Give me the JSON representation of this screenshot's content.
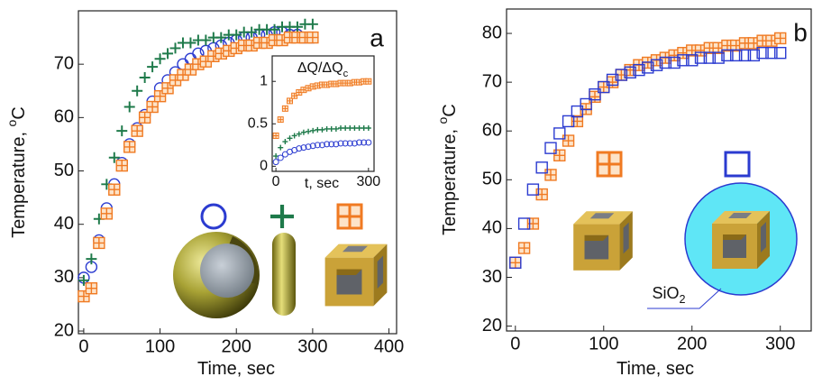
{
  "chart_data": [
    {
      "type": "scatter",
      "label": "a",
      "xlabel": [
        {
          "text": "Time, sec"
        }
      ],
      "ylabel": [
        {
          "text": "Temperature, "
        },
        {
          "text": "o",
          "shift": "super"
        },
        {
          "text": "C"
        }
      ],
      "x": [
        0,
        10,
        20,
        30,
        40,
        50,
        60,
        70,
        80,
        90,
        100,
        110,
        120,
        130,
        140,
        150,
        160,
        170,
        180,
        190,
        200,
        210,
        220,
        230,
        240,
        250,
        260,
        270,
        280,
        290,
        300
      ],
      "series": [
        {
          "marker": "circle",
          "color": "#2b3bd0",
          "values": [
            30,
            32,
            37,
            43,
            47.5,
            51.5,
            55,
            58,
            60.5,
            63,
            65.5,
            67,
            68.5,
            70,
            71,
            72,
            72.5,
            73,
            73.5,
            74,
            74.5,
            75,
            75,
            75.5,
            75.5,
            76,
            76,
            75.5,
            75.5,
            75,
            75
          ]
        },
        {
          "marker": "plus",
          "color": "#1e7a4a",
          "values": [
            29.5,
            33.5,
            41,
            47.5,
            52.5,
            57.5,
            62,
            65,
            67.5,
            69.5,
            71,
            72,
            73,
            74,
            74,
            74.5,
            74.5,
            75,
            75,
            75.5,
            75.5,
            76,
            76,
            76.5,
            76.5,
            76.5,
            77,
            77,
            77,
            77.5,
            77.5
          ]
        },
        {
          "marker": "boxplus",
          "color": "#f07a22",
          "values": [
            26.5,
            28,
            36.5,
            42,
            46.5,
            51,
            54.5,
            57.5,
            60,
            62,
            64,
            65.5,
            67,
            68,
            69,
            70,
            70.5,
            71.5,
            72,
            72.5,
            73,
            73.5,
            73.5,
            74,
            74,
            74.5,
            74.5,
            75,
            75,
            75,
            75
          ]
        }
      ],
      "xlim": [
        -7,
        410
      ],
      "ylim": [
        19.5,
        80
      ],
      "xticks": [
        0,
        100,
        200,
        300,
        400
      ],
      "yticks": [
        20,
        30,
        40,
        50,
        60,
        70
      ],
      "grid": false,
      "legend": true
    },
    {
      "type": "scatter",
      "xlabel": [
        {
          "text": "t, sec"
        }
      ],
      "ylabel": [
        {
          "text": "ΔQ/ΔQ"
        },
        {
          "text": "c",
          "shift": "sub"
        }
      ],
      "x": [
        0,
        15,
        30,
        45,
        60,
        75,
        90,
        105,
        120,
        135,
        150,
        165,
        180,
        195,
        210,
        225,
        240,
        255,
        270,
        285,
        300
      ],
      "series": [
        {
          "marker": "boxplus",
          "color": "#f07a22",
          "values": [
            0.36,
            0.55,
            0.68,
            0.77,
            0.83,
            0.87,
            0.9,
            0.92,
            0.94,
            0.95,
            0.96,
            0.96,
            0.97,
            0.97,
            0.98,
            0.98,
            0.98,
            0.99,
            0.99,
            1.0,
            1.0
          ]
        },
        {
          "marker": "plus",
          "color": "#1e7a4a",
          "values": [
            0.12,
            0.22,
            0.29,
            0.33,
            0.36,
            0.38,
            0.4,
            0.41,
            0.42,
            0.43,
            0.43,
            0.44,
            0.44,
            0.44,
            0.45,
            0.45,
            0.45,
            0.45,
            0.45,
            0.45,
            0.45
          ]
        },
        {
          "marker": "circle",
          "color": "#2b3bd0",
          "values": [
            0.05,
            0.1,
            0.14,
            0.17,
            0.19,
            0.21,
            0.22,
            0.23,
            0.24,
            0.25,
            0.25,
            0.26,
            0.26,
            0.26,
            0.27,
            0.27,
            0.27,
            0.27,
            0.28,
            0.28,
            0.28
          ]
        }
      ],
      "xlim": [
        -12,
        318
      ],
      "ylim": [
        -0.06,
        1.3
      ],
      "xticks": [
        0,
        300
      ],
      "yticks": [
        0,
        0.5,
        1
      ],
      "grid": false,
      "legend": false
    },
    {
      "type": "scatter",
      "label": "b",
      "xlabel": [
        {
          "text": "Time, sec"
        }
      ],
      "ylabel": [
        {
          "text": "Temperature, "
        },
        {
          "text": "o",
          "shift": "super"
        },
        {
          "text": "C"
        }
      ],
      "annotation": [
        {
          "text": "SiO"
        },
        {
          "text": "2",
          "shift": "sub"
        }
      ],
      "x": [
        0,
        10,
        20,
        30,
        40,
        50,
        60,
        70,
        80,
        90,
        100,
        110,
        120,
        130,
        140,
        150,
        160,
        170,
        180,
        190,
        200,
        210,
        220,
        230,
        240,
        250,
        260,
        270,
        280,
        290,
        300
      ],
      "series": [
        {
          "marker": "boxplus",
          "color": "#f07a22",
          "values": [
            33,
            36,
            41,
            47,
            51,
            55,
            58,
            62,
            64.5,
            67,
            69,
            70,
            71.5,
            72.5,
            73.5,
            74,
            74.5,
            75,
            75.5,
            76,
            76.5,
            76.5,
            77,
            77,
            77.5,
            77.5,
            78,
            78,
            78.5,
            78.5,
            79
          ]
        },
        {
          "marker": "square",
          "color": "#2b3bd0",
          "values": [
            33,
            41,
            48,
            52.5,
            56.5,
            59.5,
            62,
            64,
            65.5,
            67.5,
            69,
            70.5,
            71.5,
            72,
            72.5,
            73,
            73.5,
            74,
            74,
            74.5,
            74.5,
            75,
            75,
            75,
            75.5,
            75.5,
            75.5,
            75.5,
            76,
            76,
            76
          ]
        }
      ],
      "xlim": [
        -10,
        335
      ],
      "ylim": [
        19,
        85
      ],
      "xticks": [
        0,
        100,
        200,
        300
      ],
      "yticks": [
        20,
        30,
        40,
        50,
        60,
        70,
        80
      ],
      "grid": false,
      "legend": true
    }
  ]
}
